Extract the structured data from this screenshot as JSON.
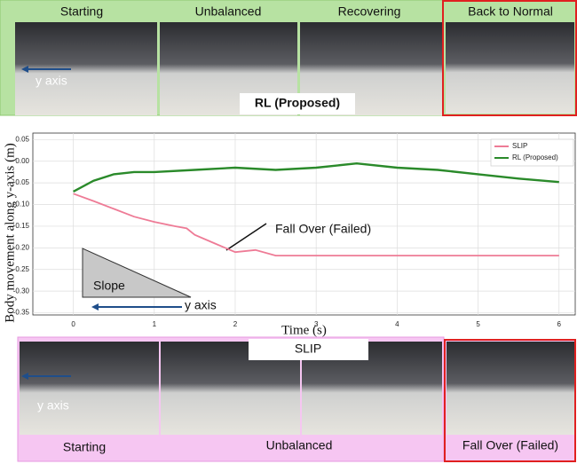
{
  "top_panel": {
    "labels": [
      "Starting",
      "Unbalanced",
      "Recovering",
      "Back to Normal"
    ],
    "caption": "RL (Proposed)",
    "photo_label": "y axis"
  },
  "chart_data": {
    "type": "line",
    "xlabel": "Time (s)",
    "ylabel": "Body movement along y-axis (m)",
    "xlim": [
      -0.5,
      6.2
    ],
    "xticks": [
      0,
      1,
      2,
      3,
      4,
      5,
      6
    ],
    "ylim": [
      -0.355,
      0.065
    ],
    "yticks": [
      0.05,
      {
        "value": 0,
        "label": "0.00"
      },
      -0.05,
      {
        "value": -0.1,
        "label": "-0.10"
      },
      -0.15,
      {
        "value": -0.2,
        "label": "-0.20"
      },
      -0.25,
      {
        "value": -0.3,
        "label": "-0.30"
      },
      -0.35
    ],
    "grid": true,
    "legend": "upper right",
    "series": [
      {
        "name": "SLIP",
        "color": "#ee7b96",
        "x": [
          0,
          0.25,
          0.5,
          0.75,
          1,
          1.25,
          1.4,
          1.5,
          1.75,
          2,
          2.25,
          2.5,
          3,
          4,
          5,
          6
        ],
        "values": [
          -0.075,
          -0.092,
          -0.11,
          -0.128,
          -0.14,
          -0.15,
          -0.155,
          -0.17,
          -0.19,
          -0.21,
          -0.205,
          -0.218,
          -0.218,
          -0.218,
          -0.218,
          -0.218
        ]
      },
      {
        "name": "RL (Proposed)",
        "color": "#2a8a2a",
        "x": [
          0,
          0.25,
          0.5,
          0.75,
          1,
          1.5,
          2,
          2.5,
          3,
          3.5,
          4,
          4.5,
          5,
          5.5,
          6
        ],
        "values": [
          -0.07,
          -0.045,
          -0.03,
          -0.025,
          -0.025,
          -0.02,
          -0.015,
          -0.02,
          -0.015,
          -0.005,
          -0.015,
          -0.02,
          -0.03,
          -0.04,
          -0.048
        ]
      }
    ],
    "annotations": [
      "Fall Over (Failed)",
      "Slope",
      "y axis"
    ]
  },
  "bottom_panel": {
    "caption": "SLIP",
    "labels": [
      "Starting",
      "Unbalanced",
      "Fall Over (Failed)"
    ],
    "photo_label": "y axis"
  }
}
